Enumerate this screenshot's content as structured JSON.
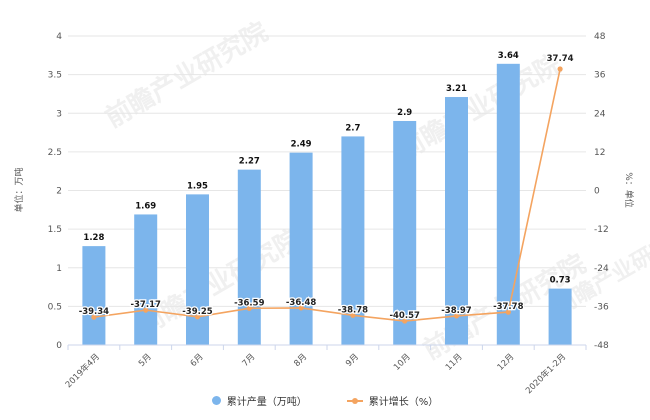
{
  "chart_data": {
    "type": "bar",
    "categories": [
      "2019年4月",
      "5月",
      "6月",
      "7月",
      "8月",
      "9月",
      "10月",
      "11月",
      "12月",
      "2020年1-2月"
    ],
    "series": [
      {
        "name": "累计产量（万吨）",
        "type": "bar",
        "axis": "left",
        "values": [
          1.28,
          1.69,
          1.95,
          2.27,
          2.49,
          2.7,
          2.9,
          3.21,
          3.64,
          0.73
        ],
        "color": "#7cb5ec"
      },
      {
        "name": "累计增长（%）",
        "type": "line",
        "axis": "right",
        "values": [
          -39.34,
          -37.17,
          -39.25,
          -36.59,
          -36.48,
          -38.78,
          -40.57,
          -38.97,
          -37.78,
          37.74
        ],
        "color": "#f4a460"
      }
    ],
    "ylabel": "单位：万吨",
    "y2label": "%：单位",
    "ylim": [
      0,
      4
    ],
    "y2lim": [
      -48,
      48
    ],
    "yticks": [
      "0",
      "0.5",
      "1",
      "1.5",
      "2",
      "2.5",
      "3",
      "3.5",
      "4"
    ],
    "y2ticks": [
      "-48",
      "-36",
      "-24",
      "-12",
      "0",
      "12",
      "24",
      "36",
      "48"
    ],
    "grid": true,
    "legend_position": "bottom"
  },
  "watermark": "前瞻产业研究院"
}
